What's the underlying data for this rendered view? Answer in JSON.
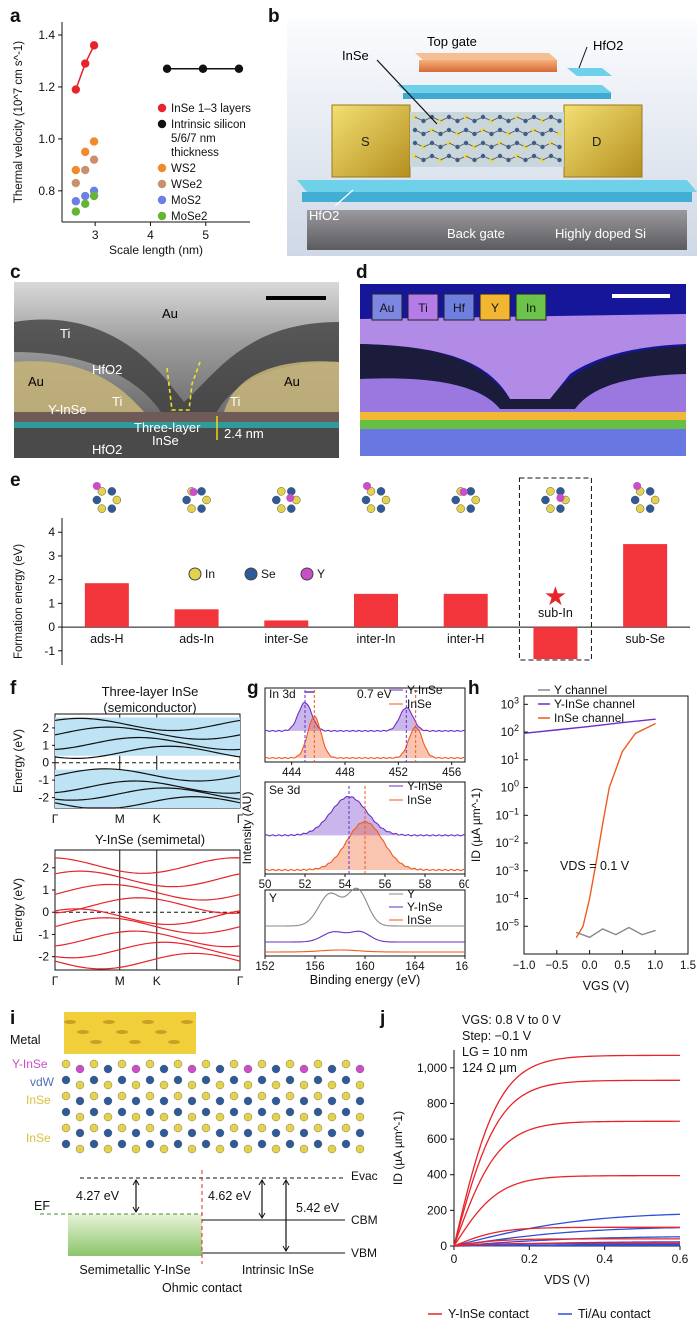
{
  "panels": {
    "a": {
      "letter": "a"
    },
    "b": {
      "letter": "b",
      "labels": {
        "top_gate": "Top gate",
        "hfo2_top": "HfO2",
        "inse": "InSe",
        "s": "S",
        "d": "D",
        "hfo2_bottom": "HfO2",
        "back_gate": "Back gate",
        "highly_doped_si": "Highly doped Si"
      }
    },
    "c": {
      "letter": "c",
      "labels": {
        "au_top": "Au",
        "ti_left": "Ti",
        "hfo2": "HfO2",
        "au_left": "Au",
        "au_right": "Au",
        "ti_mid": "Ti",
        "ti_right": "Ti",
        "y_inse": "Y-InSe",
        "three_layer": "Three-layer",
        "inse": "InSe",
        "thickness": "2.4 nm",
        "hfo2_bottom": "HfO2"
      }
    },
    "d": {
      "letter": "d",
      "legend": [
        "Au",
        "Ti",
        "Hf",
        "Y",
        "In"
      ],
      "legend_colors": [
        "#7d86e0",
        "#b57ce8",
        "#6f7fe0",
        "#f2b632",
        "#6cc24a"
      ]
    },
    "e": {
      "letter": "e",
      "legend": {
        "in": "In",
        "se": "Se",
        "y": "Y"
      }
    },
    "f": {
      "letter": "f",
      "top_title_1": "Three-layer InSe",
      "top_title_2": "(semiconductor)",
      "bottom_title": "Y-InSe (semimetal)",
      "ylabel": "Energy (eV)",
      "kpoints": [
        "Γ",
        "M",
        "K",
        "Γ"
      ]
    },
    "g": {
      "letter": "g",
      "sub1_title": "In 3d",
      "sub1_shift": "0.7 eV",
      "sub2_title": "Se 3d",
      "sub3_title": "Y",
      "ylabel": "Intensity (AU)",
      "xlabel": "Binding energy (eV)",
      "legend_y_inse": "Y-InSe",
      "legend_inse": "InSe",
      "legend_y": "Y"
    },
    "h": {
      "letter": "h",
      "vds": "VDS = 0.1 V",
      "legend": [
        "Y channel",
        "Y-InSe channel",
        "InSe channel"
      ]
    },
    "i": {
      "letter": "i",
      "labels": {
        "metal": "Metal",
        "y_inse": "Y-InSe",
        "vdw": "vdW",
        "inse1": "InSe",
        "inse2": "InSe",
        "evac": "Evac",
        "ef": "EF",
        "cbm": "CBM",
        "vbm": "VBM",
        "v427": "4.27 eV",
        "v462": "4.62 eV",
        "v542": "5.42 eV",
        "semimetallic": "Semimetallic Y-InSe",
        "intrinsic": "Intrinsic InSe",
        "ohmic": "Ohmic contact"
      }
    },
    "j": {
      "letter": "j",
      "vgs": "VGS: 0.8 V to 0 V",
      "step": "Step: −0.1 V",
      "lg": "LG = 10 nm",
      "res": "124 Ω µm",
      "legend": [
        "Y-InSe contact",
        "Ti/Au contact"
      ]
    }
  },
  "chart_data": [
    {
      "id": "a",
      "type": "scatter",
      "xlabel": "Scale length (nm)",
      "ylabel": "Thermal velocity (10^7 cm s^-1)",
      "xlim": [
        2.4,
        5.8
      ],
      "ylim": [
        0.68,
        1.45
      ],
      "xticks": [
        3,
        4,
        5
      ],
      "yticks": [
        0.8,
        1.0,
        1.2,
        1.4
      ],
      "series": [
        {
          "name": "InSe 1–3 layers",
          "color": "#e8232a",
          "line": true,
          "x": [
            2.65,
            2.82,
            2.98
          ],
          "y": [
            1.19,
            1.29,
            1.36
          ]
        },
        {
          "name": "Intrinsic silicon 5/6/7 nm thickness",
          "color": "#111111",
          "line": true,
          "x": [
            4.3,
            4.95,
            5.6
          ],
          "y": [
            1.27,
            1.27,
            1.27
          ]
        },
        {
          "name": "WS2",
          "color": "#f08a2a",
          "line": false,
          "x": [
            2.65,
            2.82,
            2.98
          ],
          "y": [
            0.88,
            0.95,
            0.99
          ]
        },
        {
          "name": "WSe2",
          "color": "#c8906c",
          "line": false,
          "x": [
            2.65,
            2.82,
            2.98
          ],
          "y": [
            0.83,
            0.88,
            0.92
          ]
        },
        {
          "name": "MoS2",
          "color": "#6d7ee6",
          "line": false,
          "x": [
            2.65,
            2.82,
            2.98
          ],
          "y": [
            0.76,
            0.78,
            0.8
          ]
        },
        {
          "name": "MoSe2",
          "color": "#63b533",
          "line": false,
          "x": [
            2.65,
            2.82,
            2.98
          ],
          "y": [
            0.72,
            0.75,
            0.78
          ]
        }
      ]
    },
    {
      "id": "e",
      "type": "bar",
      "ylabel": "Formation energy (eV)",
      "ylim": [
        -1.6,
        4.6
      ],
      "yticks": [
        -1,
        0,
        1,
        2,
        3,
        4
      ],
      "categories": [
        "ads-H",
        "ads-In",
        "inter-Se",
        "inter-In",
        "inter-H",
        "sub-In",
        "sub-Se"
      ],
      "values": [
        1.85,
        0.75,
        0.28,
        1.4,
        1.4,
        -1.35,
        3.5
      ]
    },
    {
      "id": "h",
      "type": "line",
      "xlabel": "VGS (V)",
      "ylabel": "ID (µA µm^-1)",
      "xlim": [
        -1.0,
        1.5
      ],
      "ylim_log10": [
        -6,
        3.3
      ],
      "yscale": "log",
      "xticks": [
        -1.0,
        -0.5,
        0,
        0.5,
        1.0,
        1.5
      ],
      "yticks_label": [
        "10^-5",
        "10^-4",
        "10^-3",
        "10^-2",
        "10^-1",
        "10^0",
        "10^1",
        "10^2",
        "10^3"
      ],
      "series": [
        {
          "name": "Y channel",
          "color": "#888888",
          "x": [
            -0.2,
            0,
            0.2,
            0.4,
            0.6,
            0.8,
            1.0
          ],
          "y": [
            6e-06,
            4e-06,
            8e-06,
            5e-06,
            9e-06,
            5e-06,
            7e-06
          ]
        },
        {
          "name": "Y-InSe channel",
          "color": "#6a2fc8",
          "x": [
            -1.0,
            -0.5,
            0,
            0.5,
            1.0
          ],
          "y": [
            90,
            120,
            160,
            220,
            290
          ]
        },
        {
          "name": "InSe channel",
          "color": "#f05a1e",
          "x": [
            -0.2,
            -0.1,
            0,
            0.1,
            0.2,
            0.3,
            0.5,
            0.7,
            1.0
          ],
          "y": [
            4e-06,
            1e-05,
            0.0001,
            0.002,
            0.05,
            1,
            20,
            90,
            200
          ]
        }
      ]
    },
    {
      "id": "j",
      "type": "line",
      "xlabel": "VDS (V)",
      "ylabel": "ID (µA µm^-1)",
      "xlim": [
        0,
        0.6
      ],
      "ylim": [
        0,
        1100
      ],
      "xticks": [
        0,
        0.2,
        0.4,
        0.6
      ],
      "yticks": [
        0,
        200,
        400,
        600,
        800,
        1000
      ],
      "red_isat": [
        1070,
        930,
        700,
        395,
        105,
        40,
        15
      ],
      "blue_isat": [
        190,
        110,
        55,
        25,
        10,
        4
      ],
      "series": [
        {
          "name": "Y-InSe contact",
          "color": "#e8232a"
        },
        {
          "name": "Ti/Au contact",
          "color": "#2d4fd6"
        }
      ]
    }
  ]
}
